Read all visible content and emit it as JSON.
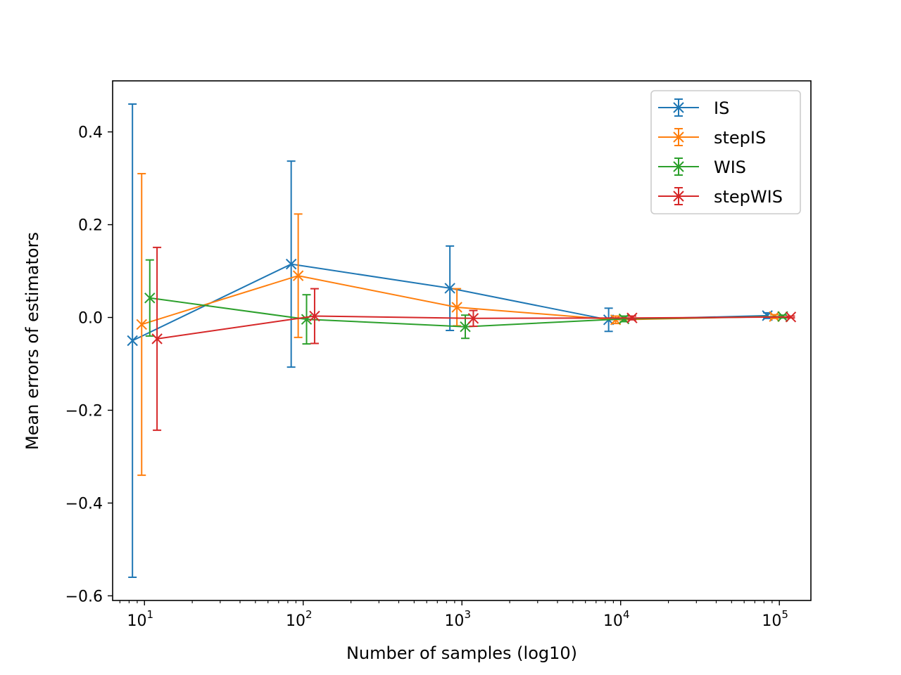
{
  "chart_data": {
    "type": "line",
    "title": "",
    "xlabel": "Number of samples (log10)",
    "ylabel": "Mean errors of estimators",
    "x_scale": "log",
    "x_ticks": [
      {
        "base": "10",
        "exp": "1",
        "value": 10
      },
      {
        "base": "10",
        "exp": "2",
        "value": 100
      },
      {
        "base": "10",
        "exp": "3",
        "value": 1000
      },
      {
        "base": "10",
        "exp": "4",
        "value": 10000
      },
      {
        "base": "10",
        "exp": "5",
        "value": 100000
      }
    ],
    "y_ticks": [
      "0.4",
      "0.2",
      "0.0",
      "−0.2",
      "−0.4",
      "−0.6"
    ],
    "y_tick_values": [
      0.4,
      0.2,
      0.0,
      -0.2,
      -0.4,
      -0.6
    ],
    "xlim": [
      6.3,
      158000
    ],
    "ylim": [
      -0.61,
      0.51
    ],
    "grid": false,
    "legend_position": "top-right",
    "series": [
      {
        "name": "IS",
        "color": "#1f77b4",
        "x": [
          8.4,
          84,
          840,
          8400,
          84000
        ],
        "y": [
          -0.05,
          0.115,
          0.063,
          -0.005,
          0.004
        ],
        "err": [
          0.51,
          0.222,
          0.091,
          0.025,
          0.006
        ]
      },
      {
        "name": "stepIS",
        "color": "#ff7f0e",
        "x": [
          9.6,
          93,
          930,
          9300,
          93000
        ],
        "y": [
          -0.015,
          0.09,
          0.022,
          -0.005,
          0.002
        ],
        "err": [
          0.325,
          0.133,
          0.04,
          0.008,
          0.004
        ]
      },
      {
        "name": "WIS",
        "color": "#2ca02c",
        "x": [
          10.8,
          105,
          1050,
          10500,
          105000
        ],
        "y": [
          0.042,
          -0.004,
          -0.02,
          -0.003,
          0.002
        ],
        "err": [
          0.082,
          0.053,
          0.025,
          0.006,
          0.003
        ]
      },
      {
        "name": "stepWIS",
        "color": "#d62728",
        "x": [
          12,
          118,
          1180,
          11800,
          118000
        ],
        "y": [
          -0.046,
          0.003,
          -0.002,
          -0.001,
          0.001
        ],
        "err": [
          0.197,
          0.059,
          0.017,
          0.004,
          0.002
        ]
      }
    ]
  }
}
